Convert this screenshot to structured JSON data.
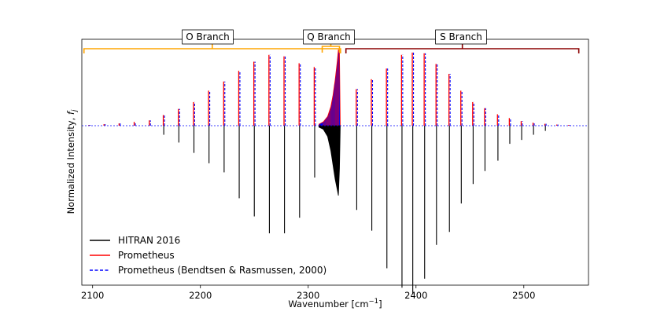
{
  "chart_data": {
    "type": "line",
    "title": "",
    "xlabel": "Wavenumber [cm",
    "xlabel_sup": "−1",
    "xlabel_end": "]",
    "ylabel": "Normalized Intensity, ",
    "ylabel_italic": "f",
    "ylabel_sub": "j",
    "xlim": [
      2090,
      2560
    ],
    "ylim": [
      -1.4,
      1.05
    ],
    "xticks": [
      2100,
      2200,
      2300,
      2400,
      2500
    ],
    "xtick_labels": [
      "2100",
      "2200",
      "2300",
      "2400",
      "2500"
    ],
    "legend_position": "lower-left",
    "legend": [
      {
        "label": "HITRAN 2016",
        "color": "#000000",
        "style": "solid"
      },
      {
        "label": "Prometheus",
        "color": "#ff0000",
        "style": "solid"
      },
      {
        "label": "Prometheus (Bendtsen & Rasmussen, 2000)",
        "color": "#0000ff",
        "style": "dashed"
      }
    ],
    "branches": [
      {
        "label": "O Branch",
        "range": [
          2092,
          2330
        ],
        "color": "#ffa500"
      },
      {
        "label": "Q Branch",
        "range": [
          2313,
          2329
        ],
        "color": "#ffa500"
      },
      {
        "label": "S Branch",
        "range": [
          2335,
          2551
        ],
        "color": "#8b0000"
      }
    ],
    "series": [
      {
        "name": "Prometheus (O branch)",
        "x": [
          2097,
          2111,
          2125,
          2139,
          2153,
          2166,
          2180,
          2194,
          2208,
          2222,
          2236,
          2250,
          2264,
          2278,
          2292,
          2306
        ],
        "values": [
          0.01,
          0.02,
          0.03,
          0.05,
          0.07,
          0.14,
          0.22,
          0.31,
          0.46,
          0.58,
          0.72,
          0.84,
          0.93,
          0.91,
          0.82,
          0.77
        ]
      },
      {
        "name": "Prometheus (S branch)",
        "x": [
          2345,
          2359,
          2373,
          2387,
          2397,
          2408,
          2419,
          2431,
          2442,
          2453,
          2464,
          2476,
          2487,
          2498,
          2509,
          2520,
          2531,
          2542
        ],
        "values": [
          0.48,
          0.61,
          0.75,
          0.93,
          0.96,
          0.95,
          0.81,
          0.68,
          0.46,
          0.31,
          0.23,
          0.15,
          0.1,
          0.06,
          0.04,
          0.025,
          0.015,
          0.01
        ]
      },
      {
        "name": "HITRAN 2016",
        "x": [
          2166,
          2180,
          2194,
          2208,
          2222,
          2236,
          2250,
          2264,
          2278,
          2292,
          2306,
          2345,
          2359,
          2373,
          2387,
          2397,
          2408,
          2419,
          2431,
          2442,
          2453,
          2464,
          2476,
          2487,
          2498,
          2509,
          2520
        ],
        "values": [
          -0.07,
          -0.13,
          -0.21,
          -0.29,
          -0.36,
          -0.56,
          -0.7,
          -0.83,
          -0.83,
          -0.71,
          -0.4,
          -0.65,
          -0.81,
          -1.1,
          -1.25,
          -1.3,
          -1.18,
          -0.92,
          -0.82,
          -0.6,
          -0.45,
          -0.35,
          -0.27,
          -0.14,
          -0.11,
          -0.07,
          -0.04
        ]
      },
      {
        "name": "Q branch envelope",
        "x": [
          2310,
          2314,
          2318,
          2321,
          2323,
          2325,
          2327,
          2328,
          2329
        ],
        "values": [
          0.02,
          0.05,
          0.12,
          0.25,
          0.4,
          0.6,
          0.85,
          1.0,
          0.95
        ],
        "hitran_values": [
          -0.02,
          -0.05,
          -0.15,
          -0.35,
          -0.55,
          -0.75,
          -0.9,
          -0.98,
          -0.6
        ]
      }
    ]
  }
}
